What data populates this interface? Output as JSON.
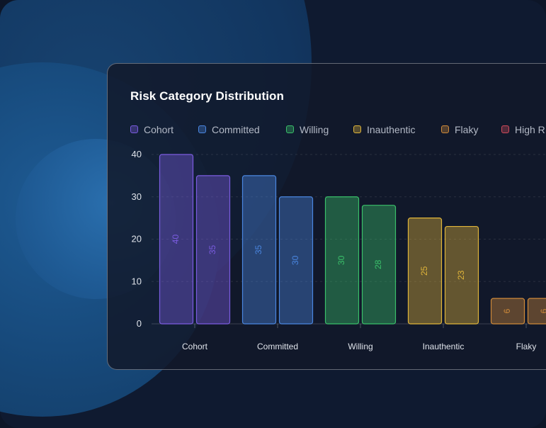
{
  "chart_data": {
    "type": "bar",
    "title": "Risk Category Distribution",
    "categories": [
      "Cohort",
      "Committed",
      "Willing",
      "Inauthentic",
      "Flaky"
    ],
    "series": [
      {
        "values": [
          40,
          35,
          30,
          25,
          6
        ]
      },
      {
        "values": [
          35,
          30,
          28,
          23,
          6
        ]
      }
    ],
    "legend": [
      {
        "label": "Cohort",
        "color": "#7b5ce0"
      },
      {
        "label": "Committed",
        "color": "#4a86e0"
      },
      {
        "label": "Willing",
        "color": "#3ac06a"
      },
      {
        "label": "Inauthentic",
        "color": "#e0b53a"
      },
      {
        "label": "Flaky",
        "color": "#d08a3a"
      },
      {
        "label": "High R",
        "color": "#d04a5a"
      }
    ],
    "category_colors": [
      "#7b5ce0",
      "#4a86e0",
      "#3ac06a",
      "#e0b53a",
      "#d08a3a"
    ],
    "yticks": [
      0,
      10,
      20,
      30,
      40
    ],
    "ylim": [
      0,
      40
    ],
    "legend_position": "top",
    "grid": true
  }
}
